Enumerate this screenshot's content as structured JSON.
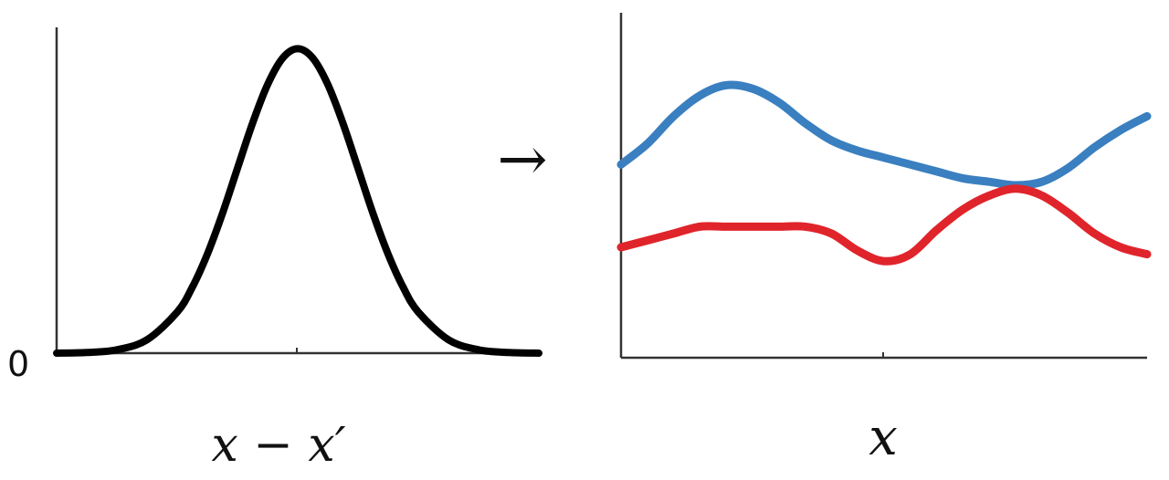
{
  "chart_data": [
    {
      "type": "line",
      "xlabel": "x − x′",
      "ylabel": "",
      "y_tick_labels": [
        "0"
      ],
      "xlim": [
        -4,
        4
      ],
      "ylim": [
        0,
        1.07
      ],
      "grid": false,
      "series": [
        {
          "color": "#000000",
          "x": [
            -4,
            -3.5,
            -3,
            -2.5,
            -2,
            -1.75,
            -1.5,
            -1.25,
            -1,
            -0.75,
            -0.5,
            -0.25,
            0,
            0.25,
            0.5,
            0.75,
            1,
            1.25,
            1.5,
            1.75,
            2,
            2.5,
            3,
            3.5,
            4
          ],
          "y": [
            0.0,
            0.002,
            0.011,
            0.044,
            0.135,
            0.216,
            0.325,
            0.458,
            0.607,
            0.755,
            0.882,
            0.969,
            1.0,
            0.969,
            0.882,
            0.755,
            0.607,
            0.458,
            0.325,
            0.216,
            0.135,
            0.044,
            0.011,
            0.002,
            0.0
          ]
        }
      ]
    },
    {
      "type": "line",
      "xlabel": "x",
      "ylabel": "",
      "xlim": [
        0,
        1
      ],
      "ylim": [
        0,
        1
      ],
      "grid": false,
      "series": [
        {
          "color": "#3a7fc0",
          "x": [
            0,
            0.05,
            0.1,
            0.15,
            0.2,
            0.25,
            0.3,
            0.35,
            0.4,
            0.45,
            0.5,
            0.55,
            0.6,
            0.65,
            0.7,
            0.75,
            0.8,
            0.85,
            0.9,
            0.95,
            1.0
          ],
          "y": [
            0.56,
            0.62,
            0.7,
            0.76,
            0.79,
            0.78,
            0.74,
            0.68,
            0.63,
            0.6,
            0.58,
            0.56,
            0.54,
            0.52,
            0.51,
            0.5,
            0.51,
            0.55,
            0.61,
            0.66,
            0.7
          ]
        },
        {
          "color": "#e0242b",
          "x": [
            0,
            0.05,
            0.1,
            0.15,
            0.2,
            0.25,
            0.3,
            0.35,
            0.4,
            0.45,
            0.5,
            0.55,
            0.6,
            0.65,
            0.7,
            0.75,
            0.8,
            0.85,
            0.9,
            0.95,
            1.0
          ],
          "y": [
            0.32,
            0.34,
            0.36,
            0.38,
            0.38,
            0.38,
            0.38,
            0.38,
            0.36,
            0.31,
            0.28,
            0.3,
            0.37,
            0.43,
            0.47,
            0.49,
            0.47,
            0.42,
            0.36,
            0.32,
            0.3
          ]
        }
      ]
    }
  ],
  "arrow_symbol": "→"
}
